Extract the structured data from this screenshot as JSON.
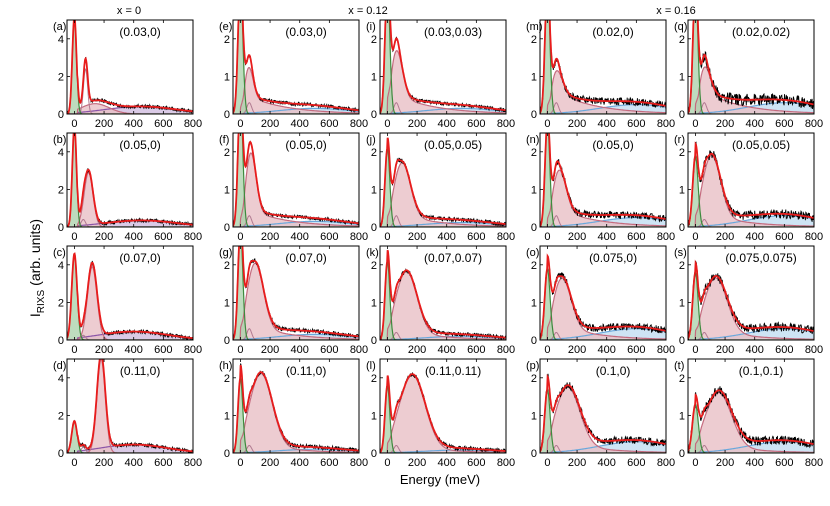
{
  "figure": {
    "column_titles": [
      "x = 0",
      "x = 0.12",
      "x = 0.16"
    ],
    "ylabel_main": "I",
    "ylabel_sub": "RIXS",
    "ylabel_rest": "(arb. units)",
    "xlabel": "Energy (meV)"
  },
  "chart_data": {
    "type": "line",
    "description_units": {
      "x": "meV",
      "y": "arb. units"
    },
    "xlim": [
      -50,
      800
    ],
    "xticks": [
      0,
      200,
      400,
      600,
      800
    ],
    "xtick_labels": [
      "0",
      "200",
      "400",
      "600",
      "800"
    ],
    "component_colors": {
      "elastic": "#3d8a3d",
      "elastic_fill": "#a8d0a8",
      "phonon": "#b07a90",
      "paramagnon": "#c46a7e",
      "paramagnon_fill": "#e9bfc6",
      "background_x0": "#8b55a8",
      "background_x0_fill": "#cbb4dc",
      "background": "#6aa8dc",
      "background_fill": "#b9d8f0",
      "fit": "#e81c1c",
      "data": "#000000"
    },
    "panels": [
      {
        "label": "(a)",
        "q": "(0.03,0)",
        "x": "0",
        "ylim": [
          0,
          5
        ],
        "yticks": [
          0,
          2,
          4
        ],
        "elastic_amp": 5.2,
        "elastic_w": 14,
        "phonon_amp": 2.4,
        "phonon_e": 75,
        "phonon_w": 14,
        "mag_amp": 0.55,
        "mag_e": 140,
        "mag_w": 95,
        "bg_amp": 0.4,
        "bg_e": 450,
        "bg_w": 240,
        "noise": 0.05
      },
      {
        "label": "(b)",
        "q": "(0.05,0)",
        "x": "0",
        "ylim": [
          0,
          5
        ],
        "yticks": [
          0,
          2,
          4
        ],
        "elastic_amp": 5.4,
        "elastic_w": 14,
        "phonon_amp": 0.4,
        "phonon_e": 60,
        "phonon_w": 15,
        "mag_amp": 2.9,
        "mag_e": 95,
        "mag_w": 30,
        "bg_amp": 0.35,
        "bg_e": 450,
        "bg_w": 240,
        "noise": 0.05
      },
      {
        "label": "(c)",
        "q": "(0.07,0)",
        "x": "0",
        "ylim": [
          0,
          5
        ],
        "yticks": [
          0,
          2,
          4
        ],
        "elastic_amp": 4.6,
        "elastic_w": 18,
        "phonon_amp": 0.25,
        "phonon_e": 60,
        "phonon_w": 15,
        "mag_amp": 3.9,
        "mag_e": 120,
        "mag_w": 32,
        "bg_amp": 0.45,
        "bg_e": 400,
        "bg_w": 230,
        "noise": 0.05
      },
      {
        "label": "(d)",
        "q": "(0.11,0)",
        "x": "0",
        "ylim": [
          0,
          5
        ],
        "yticks": [
          0,
          2,
          4
        ],
        "elastic_amp": 1.7,
        "elastic_w": 18,
        "phonon_amp": 0.3,
        "phonon_e": 60,
        "phonon_w": 15,
        "mag_amp": 5.0,
        "mag_e": 180,
        "mag_w": 28,
        "bg_amp": 0.45,
        "bg_e": 400,
        "bg_w": 220,
        "noise": 0.05
      },
      {
        "label": "(e)",
        "q": "(0.03,0)",
        "x": "0.12",
        "ylim": [
          0,
          2.5
        ],
        "yticks": [
          0,
          1,
          2
        ],
        "elastic_amp": 3.5,
        "elastic_w": 16,
        "phonon_amp": 0.3,
        "phonon_e": 60,
        "phonon_w": 16,
        "mag_amp": 0.9,
        "mag_e": 55,
        "mag_w": 30,
        "bg_amp": 0.15,
        "bg_e": 500,
        "bg_w": 240,
        "tail": 0.55,
        "noise": 0.05
      },
      {
        "label": "(f)",
        "q": "(0.05,0)",
        "x": "0.12",
        "ylim": [
          0,
          2.5
        ],
        "yticks": [
          0,
          1,
          2
        ],
        "elastic_amp": 3.5,
        "elastic_w": 16,
        "phonon_amp": 0.3,
        "phonon_e": 60,
        "phonon_w": 16,
        "mag_amp": 1.6,
        "mag_e": 70,
        "mag_w": 35,
        "bg_amp": 0.15,
        "bg_e": 500,
        "bg_w": 240,
        "tail": 0.55,
        "noise": 0.05
      },
      {
        "label": "(g)",
        "q": "(0.07,0)",
        "x": "0.12",
        "ylim": [
          0,
          2.5
        ],
        "yticks": [
          0,
          1,
          2
        ],
        "elastic_amp": 3.0,
        "elastic_w": 16,
        "phonon_amp": 0.3,
        "phonon_e": 60,
        "phonon_w": 16,
        "mag_amp": 1.7,
        "mag_e": 100,
        "mag_w": 55,
        "bg_amp": 0.15,
        "bg_e": 500,
        "bg_w": 240,
        "tail": 0.5,
        "noise": 0.06
      },
      {
        "label": "(h)",
        "q": "(0.11,0)",
        "x": "0.12",
        "ylim": [
          0,
          2.5
        ],
        "yticks": [
          0,
          1,
          2
        ],
        "elastic_amp": 2.0,
        "elastic_w": 16,
        "phonon_amp": 0.2,
        "phonon_e": 60,
        "phonon_w": 16,
        "mag_amp": 1.9,
        "mag_e": 140,
        "mag_w": 75,
        "bg_amp": 0.1,
        "bg_e": 500,
        "bg_w": 240,
        "tail": 0.35,
        "noise": 0.06
      },
      {
        "label": "(i)",
        "q": "(0.03,0.03)",
        "x": "0.12",
        "ylim": [
          0,
          2.5
        ],
        "yticks": [
          0,
          1,
          2
        ],
        "elastic_amp": 3.5,
        "elastic_w": 16,
        "phonon_amp": 0.3,
        "phonon_e": 60,
        "phonon_w": 16,
        "mag_amp": 1.3,
        "mag_e": 60,
        "mag_w": 40,
        "bg_amp": 0.15,
        "bg_e": 500,
        "bg_w": 240,
        "tail": 0.6,
        "noise": 0.05
      },
      {
        "label": "(j)",
        "q": "(0.05,0.05)",
        "x": "0.12",
        "ylim": [
          0,
          2.5
        ],
        "yticks": [
          0,
          1,
          2
        ],
        "elastic_amp": 2.1,
        "elastic_w": 16,
        "phonon_amp": 0.3,
        "phonon_e": 60,
        "phonon_w": 16,
        "mag_amp": 1.4,
        "mag_e": 100,
        "mag_w": 55,
        "bg_amp": 0.12,
        "bg_e": 500,
        "bg_w": 240,
        "tail": 0.45,
        "noise": 0.06
      },
      {
        "label": "(k)",
        "q": "(0.07,0.07)",
        "x": "0.12",
        "ylim": [
          0,
          2.5
        ],
        "yticks": [
          0,
          1,
          2
        ],
        "elastic_amp": 2.1,
        "elastic_w": 16,
        "phonon_amp": 0.2,
        "phonon_e": 60,
        "phonon_w": 16,
        "mag_amp": 1.6,
        "mag_e": 130,
        "mag_w": 70,
        "bg_amp": 0.1,
        "bg_e": 500,
        "bg_w": 240,
        "tail": 0.35,
        "noise": 0.06
      },
      {
        "label": "(l)",
        "q": "(0.11,0.11)",
        "x": "0.12",
        "ylim": [
          0,
          2.5
        ],
        "yticks": [
          0,
          1,
          2
        ],
        "elastic_amp": 1.8,
        "elastic_w": 16,
        "phonon_amp": 0.2,
        "phonon_e": 60,
        "phonon_w": 16,
        "mag_amp": 1.9,
        "mag_e": 170,
        "mag_w": 85,
        "bg_amp": 0.08,
        "bg_e": 500,
        "bg_w": 240,
        "tail": 0.3,
        "noise": 0.06
      },
      {
        "label": "(m)",
        "q": "(0.02,0)",
        "x": "0.16",
        "ylim": [
          0,
          2.5
        ],
        "yticks": [
          0,
          1,
          2
        ],
        "elastic_amp": 3.5,
        "elastic_w": 16,
        "phonon_amp": 0.3,
        "phonon_e": 60,
        "phonon_w": 16,
        "mag_amp": 0.7,
        "mag_e": 60,
        "mag_w": 40,
        "bg_amp": 0.25,
        "bg_e": 600,
        "bg_w": 250,
        "tail": 0.7,
        "noise": 0.1
      },
      {
        "label": "(n)",
        "q": "(0.05,0)",
        "x": "0.16",
        "ylim": [
          0,
          2.5
        ],
        "yticks": [
          0,
          1,
          2
        ],
        "elastic_amp": 2.8,
        "elastic_w": 16,
        "phonon_amp": 0.3,
        "phonon_e": 60,
        "phonon_w": 16,
        "mag_amp": 1.1,
        "mag_e": 80,
        "mag_w": 45,
        "bg_amp": 0.25,
        "bg_e": 600,
        "bg_w": 250,
        "tail": 0.6,
        "noise": 0.1
      },
      {
        "label": "(o)",
        "q": "(0.075,0)",
        "x": "0.16",
        "ylim": [
          0,
          2.5
        ],
        "yticks": [
          0,
          1,
          2
        ],
        "elastic_amp": 1.9,
        "elastic_w": 18,
        "phonon_amp": 0.2,
        "phonon_e": 60,
        "phonon_w": 16,
        "mag_amp": 1.3,
        "mag_e": 100,
        "mag_w": 60,
        "bg_amp": 0.3,
        "bg_e": 600,
        "bg_w": 250,
        "tail": 0.5,
        "noise": 0.1
      },
      {
        "label": "(p)",
        "q": "(0.1,0)",
        "x": "0.16",
        "ylim": [
          0,
          2.5
        ],
        "yticks": [
          0,
          1,
          2
        ],
        "elastic_amp": 1.7,
        "elastic_w": 18,
        "phonon_amp": 0.2,
        "phonon_e": 60,
        "phonon_w": 16,
        "mag_amp": 1.5,
        "mag_e": 140,
        "mag_w": 80,
        "bg_amp": 0.3,
        "bg_e": 600,
        "bg_w": 250,
        "tail": 0.4,
        "noise": 0.1
      },
      {
        "label": "(q)",
        "q": "(0.02,0.02)",
        "x": "0.16",
        "ylim": [
          0,
          2.5
        ],
        "yticks": [
          0,
          1,
          2
        ],
        "elastic_amp": 3.5,
        "elastic_w": 16,
        "phonon_amp": 0.3,
        "phonon_e": 60,
        "phonon_w": 16,
        "mag_amp": 0.8,
        "mag_e": 60,
        "mag_w": 40,
        "bg_amp": 0.3,
        "bg_e": 600,
        "bg_w": 250,
        "tail": 0.7,
        "noise": 0.16
      },
      {
        "label": "(r)",
        "q": "(0.05,0.05)",
        "x": "0.16",
        "ylim": [
          0,
          2.5
        ],
        "yticks": [
          0,
          1,
          2
        ],
        "elastic_amp": 1.9,
        "elastic_w": 18,
        "phonon_amp": 0.2,
        "phonon_e": 60,
        "phonon_w": 16,
        "mag_amp": 1.6,
        "mag_e": 110,
        "mag_w": 60,
        "bg_amp": 0.3,
        "bg_e": 600,
        "bg_w": 250,
        "tail": 0.45,
        "noise": 0.12
      },
      {
        "label": "(s)",
        "q": "(0.075,0.075)",
        "x": "0.16",
        "ylim": [
          0,
          2.5
        ],
        "yticks": [
          0,
          1,
          2
        ],
        "elastic_amp": 1.8,
        "elastic_w": 18,
        "phonon_amp": 0.2,
        "phonon_e": 60,
        "phonon_w": 16,
        "mag_amp": 1.4,
        "mag_e": 140,
        "mag_w": 75,
        "bg_amp": 0.3,
        "bg_e": 600,
        "bg_w": 250,
        "tail": 0.4,
        "noise": 0.12
      },
      {
        "label": "(t)",
        "q": "(0.1,0.1)",
        "x": "0.16",
        "ylim": [
          0,
          2.5
        ],
        "yticks": [
          0,
          1,
          2
        ],
        "elastic_amp": 1.3,
        "elastic_w": 20,
        "phonon_amp": 0.2,
        "phonon_e": 60,
        "phonon_w": 16,
        "mag_amp": 1.4,
        "mag_e": 160,
        "mag_w": 85,
        "bg_amp": 0.3,
        "bg_e": 600,
        "bg_w": 250,
        "tail": 0.35,
        "noise": 0.12
      }
    ]
  }
}
